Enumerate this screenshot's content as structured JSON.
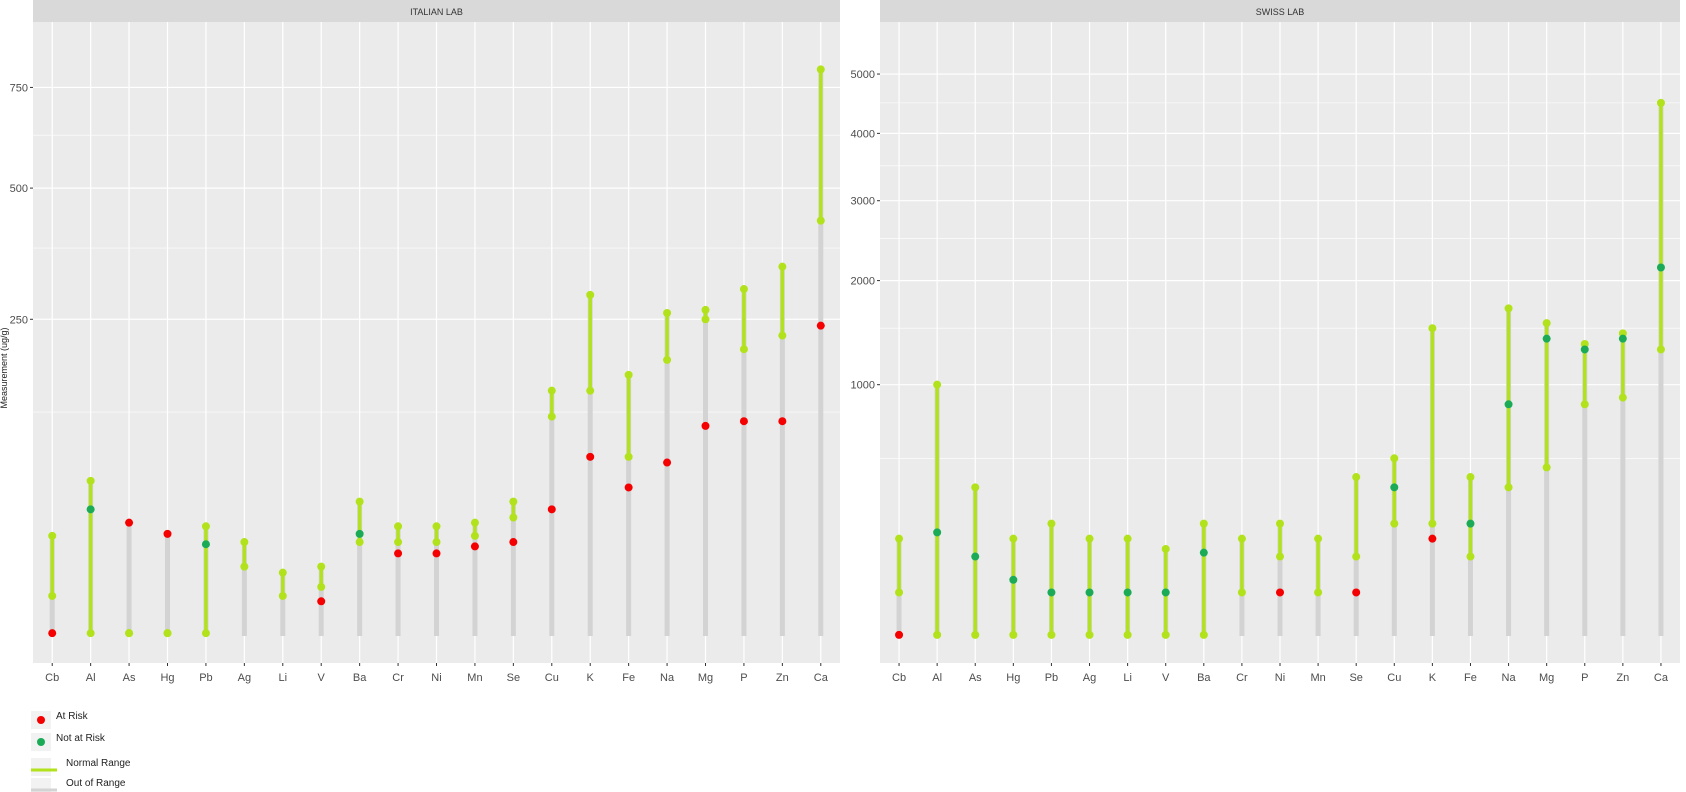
{
  "chart_data": {
    "type": "range-dot",
    "ylabel": "Measurement (ug/g)",
    "categories": [
      "Cb",
      "Al",
      "As",
      "Hg",
      "Pb",
      "Ag",
      "Li",
      "V",
      "Ba",
      "Cr",
      "Ni",
      "Mn",
      "Se",
      "Cu",
      "K",
      "Fe",
      "Na",
      "Mg",
      "P",
      "Zn",
      "Ca"
    ],
    "colors": {
      "at_risk": "#f50000",
      "not_at_risk": "#1bab57",
      "normal_range": "#b2e21b",
      "out_of_range": "#d3d3d3",
      "panel_bg": "#ebebeb",
      "strip_bg": "#d9d9d9",
      "grid": "#ffffff"
    },
    "legend": {
      "position": "bottom-left",
      "items": [
        {
          "label": "At Risk",
          "kind": "point",
          "color": "#f50000"
        },
        {
          "label": "Not at Risk",
          "kind": "point",
          "color": "#1bab57"
        },
        {
          "label": "Normal Range",
          "kind": "line",
          "color": "#b2e21b"
        },
        {
          "label": "Out of Range",
          "kind": "line",
          "color": "#d3d3d3"
        }
      ]
    },
    "panels": [
      {
        "title": "ITALIAN LAB",
        "scale": "sqrt",
        "yticks": [
          250,
          500,
          750
        ],
        "yticklabels": [
          "250",
          "500",
          "750"
        ],
        "ylim": [
          0,
          850
        ],
        "grid": true,
        "normal_low": [
          4,
          0.02,
          0.02,
          0.02,
          0.02,
          12,
          4,
          6,
          22,
          22,
          22,
          25,
          35,
          120,
          150,
          80,
          190,
          250,
          300,
          340,
          430
        ],
        "normal_high": [
          25,
          60,
          0.02,
          0.02,
          30,
          22,
          10,
          12,
          45,
          30,
          30,
          32,
          45,
          150,
          290,
          170,
          260,
          265,
          205,
          225,
          800
        ],
        "values": [
          0.02,
          40,
          32,
          26,
          21,
          0,
          0,
          3,
          26,
          17,
          17,
          20,
          22,
          40,
          80,
          55,
          75,
          110,
          115,
          115,
          240
        ],
        "status": [
          "at_risk",
          "not_at_risk",
          "at_risk",
          "at_risk",
          "not_at_risk",
          "none",
          "none",
          "at_risk",
          "not_at_risk",
          "at_risk",
          "at_risk",
          "at_risk",
          "at_risk",
          "at_risk",
          "at_risk",
          "at_risk",
          "at_risk",
          "at_risk",
          "at_risk",
          "at_risk",
          "at_risk"
        ]
      },
      {
        "title": "SWISS LAB",
        "scale": "sqrt",
        "yticks": [
          1000,
          2000,
          3000,
          4000,
          5000
        ],
        "yticklabels": [
          "1000",
          "2000",
          "3000",
          "4000",
          "5000"
        ],
        "ylim": [
          0,
          5400
        ],
        "grid": true,
        "normal_low": [
          30,
          0.02,
          0.02,
          0.02,
          0.02,
          0.02,
          0.02,
          0.02,
          0.02,
          30,
          100,
          30,
          100,
          200,
          200,
          100,
          350,
          450,
          850,
          900,
          1300
        ],
        "normal_high": [
          150,
          1000,
          350,
          150,
          200,
          150,
          150,
          120,
          200,
          150,
          200,
          150,
          400,
          500,
          1500,
          400,
          1700,
          1550,
          1350,
          1450,
          4500
        ],
        "values": [
          0.02,
          170,
          100,
          50,
          30,
          30,
          30,
          30,
          110,
          150,
          30,
          150,
          30,
          350,
          150,
          200,
          850,
          1400,
          1300,
          1400,
          2150
        ],
        "status": [
          "at_risk",
          "not_at_risk",
          "not_at_risk",
          "not_at_risk",
          "not_at_risk",
          "not_at_risk",
          "not_at_risk",
          "not_at_risk",
          "not_at_risk",
          "none",
          "at_risk",
          "none",
          "at_risk",
          "not_at_risk",
          "at_risk",
          "not_at_risk",
          "not_at_risk",
          "not_at_risk",
          "not_at_risk",
          "not_at_risk",
          "not_at_risk"
        ]
      }
    ]
  }
}
